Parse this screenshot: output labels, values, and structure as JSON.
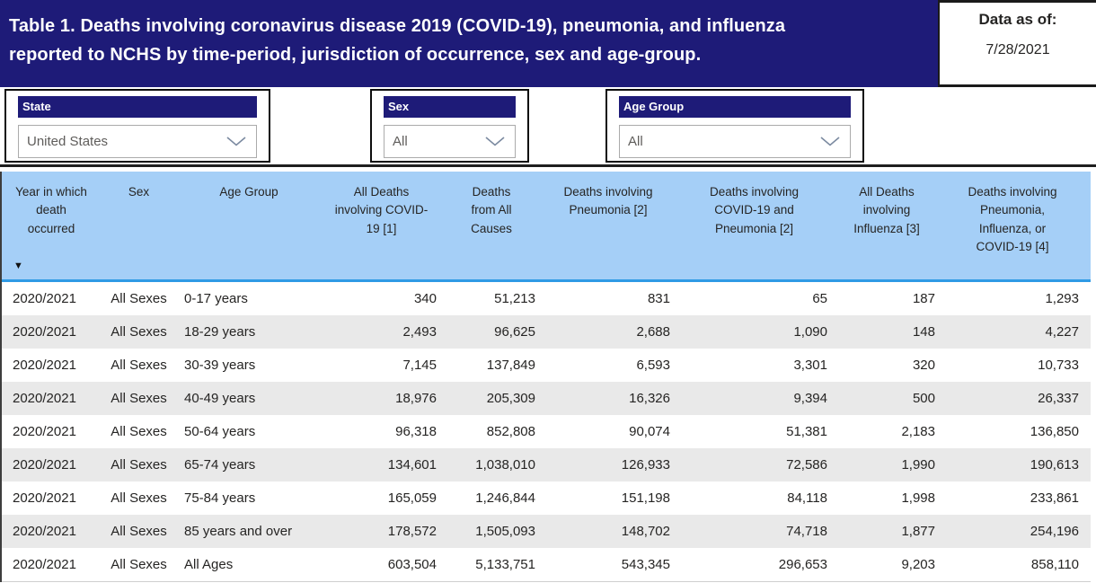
{
  "header": {
    "title_line1": "Table 1. Deaths involving coronavirus disease 2019 (COVID-19), pneumonia, and influenza",
    "title_line2": "reported to NCHS by time-period, jurisdiction of occurrence, sex and age-group.",
    "data_as_of_label": "Data as of:",
    "data_as_of_date": "7/28/2021"
  },
  "filters": [
    {
      "label": "State",
      "value": "United States"
    },
    {
      "label": "Sex",
      "value": "All"
    },
    {
      "label": "Age Group",
      "value": "All"
    }
  ],
  "icons": {
    "chevron_down": "⌄",
    "sort_descending": "▼"
  },
  "colors": {
    "navy": "#1e1b78",
    "table_header_blue": "#a5cff7",
    "header_divider_blue": "#2f9ae5",
    "alt_row_gray": "#e9e9e9",
    "text": "#252423"
  },
  "table": {
    "columns": [
      {
        "label": "Year in which death occurred"
      },
      {
        "label": "Sex"
      },
      {
        "label": "Age Group"
      },
      {
        "label": "All Deaths involving COVID-19 [1]"
      },
      {
        "label": "Deaths from All Causes"
      },
      {
        "label": "Deaths involving Pneumonia [2]"
      },
      {
        "label": "Deaths involving COVID-19 and Pneumonia [2]"
      },
      {
        "label": "All Deaths involving Influenza [3]"
      },
      {
        "label": "Deaths involving Pneumonia, Influenza, or COVID-19 [4]"
      }
    ],
    "rows": [
      [
        "2020/2021",
        "All Sexes",
        "0-17 years",
        "340",
        "51,213",
        "831",
        "65",
        "187",
        "1,293"
      ],
      [
        "2020/2021",
        "All Sexes",
        "18-29 years",
        "2,493",
        "96,625",
        "2,688",
        "1,090",
        "148",
        "4,227"
      ],
      [
        "2020/2021",
        "All Sexes",
        "30-39 years",
        "7,145",
        "137,849",
        "6,593",
        "3,301",
        "320",
        "10,733"
      ],
      [
        "2020/2021",
        "All Sexes",
        "40-49 years",
        "18,976",
        "205,309",
        "16,326",
        "9,394",
        "500",
        "26,337"
      ],
      [
        "2020/2021",
        "All Sexes",
        "50-64 years",
        "96,318",
        "852,808",
        "90,074",
        "51,381",
        "2,183",
        "136,850"
      ],
      [
        "2020/2021",
        "All Sexes",
        "65-74 years",
        "134,601",
        "1,038,010",
        "126,933",
        "72,586",
        "1,990",
        "190,613"
      ],
      [
        "2020/2021",
        "All Sexes",
        "75-84 years",
        "165,059",
        "1,246,844",
        "151,198",
        "84,118",
        "1,998",
        "233,861"
      ],
      [
        "2020/2021",
        "All Sexes",
        "85 years and over",
        "178,572",
        "1,505,093",
        "148,702",
        "74,718",
        "1,877",
        "254,196"
      ],
      [
        "2020/2021",
        "All Sexes",
        "All Ages",
        "603,504",
        "5,133,751",
        "543,345",
        "296,653",
        "9,203",
        "858,110"
      ]
    ]
  }
}
